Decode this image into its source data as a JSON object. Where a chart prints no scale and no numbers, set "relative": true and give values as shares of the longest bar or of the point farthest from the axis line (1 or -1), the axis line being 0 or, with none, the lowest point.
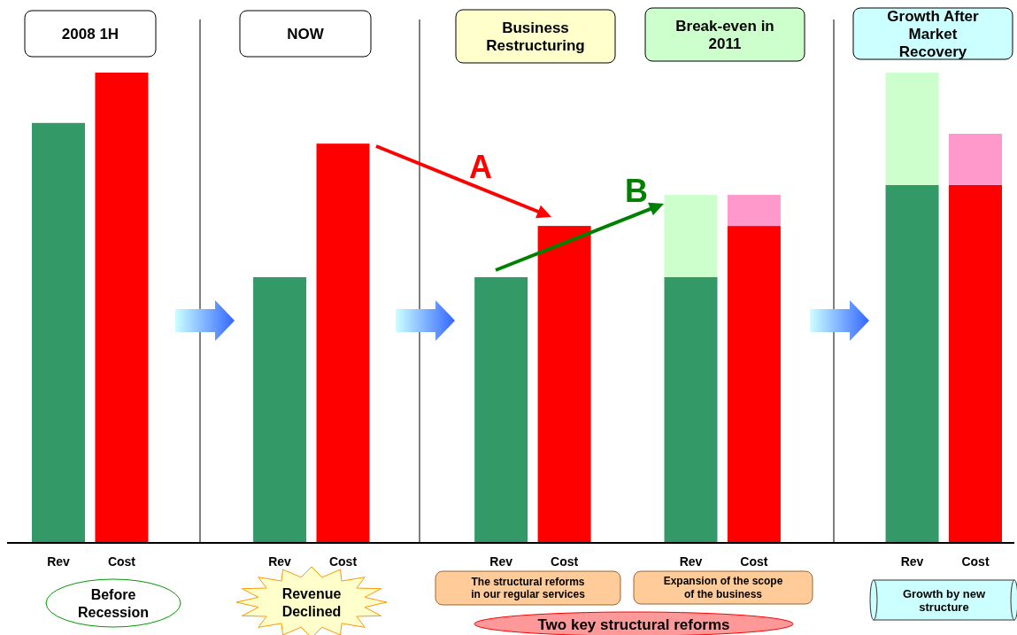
{
  "chart_data": {
    "type": "bar",
    "stacked": true,
    "relative": true,
    "categories": [
      "Rev",
      null,
      "Cost",
      null,
      null,
      null,
      null,
      "Rev",
      null,
      "Cost",
      null,
      null,
      null,
      null,
      "Rev",
      null,
      "Cost",
      null,
      null,
      null,
      "Rev",
      null,
      "Cost",
      null,
      null,
      null,
      null,
      "Rev",
      null,
      "Cost"
    ],
    "series": [
      {
        "colors": [
          "#339966",
          null,
          "#ff0000",
          null,
          null,
          null,
          null,
          "#339966",
          null,
          "#ff0000",
          null,
          null,
          null,
          null,
          "#339966",
          null,
          "#ff0000",
          null,
          null,
          null,
          "#339966",
          null,
          "#ff0000",
          null,
          null,
          null,
          null,
          "#339966",
          null,
          "#ff0000"
        ],
        "values": [
          0.893,
          null,
          1.0,
          null,
          null,
          null,
          null,
          0.565,
          null,
          0.849,
          null,
          null,
          null,
          null,
          0.565,
          null,
          0.674,
          null,
          null,
          null,
          0.565,
          null,
          0.674,
          null,
          null,
          null,
          null,
          0.761,
          null,
          0.761
        ]
      },
      {
        "colors": [
          null,
          null,
          null,
          null,
          null,
          null,
          null,
          null,
          null,
          null,
          null,
          null,
          null,
          null,
          null,
          null,
          null,
          null,
          null,
          null,
          "#ccffcc",
          null,
          "#ff99cc",
          null,
          null,
          null,
          null,
          "#ccffcc",
          null,
          "#ff99cc"
        ],
        "values": [
          null,
          null,
          null,
          null,
          null,
          null,
          null,
          null,
          null,
          null,
          null,
          null,
          null,
          null,
          null,
          null,
          null,
          null,
          null,
          null,
          0.175,
          null,
          0.066,
          null,
          null,
          null,
          null,
          0.239,
          null,
          0.109
        ]
      }
    ],
    "annotations": [
      "2008 1H",
      "NOW",
      "Business Restructuring",
      "Break-even in 2011",
      "Growth After Market Recovery",
      "Before Recession",
      "Revenue Declined",
      "The structural reforms in our regular services",
      "Expansion of the scope of the business",
      "Growth by new structure",
      "Two key structural reforms",
      "A",
      "B"
    ]
  }
}
